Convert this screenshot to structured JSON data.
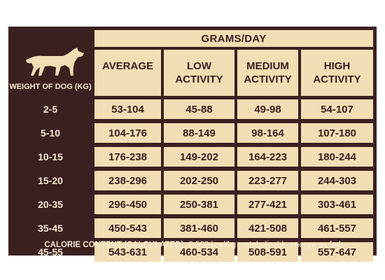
{
  "table": {
    "grams_header": "GRAMS/DAY",
    "weight_header": "WEIGHT OF DOG (KG)",
    "columns": [
      {
        "line1": "AVERAGE",
        "line2": ""
      },
      {
        "line1": "LOW",
        "line2": "ACTIVITY"
      },
      {
        "line1": "MEDIUM",
        "line2": "ACTIVITY"
      },
      {
        "line1": "HIGH",
        "line2": "ACTIVITY"
      }
    ],
    "rows": [
      {
        "weight": "2-5",
        "values": [
          "53-104",
          "45-88",
          "49-98",
          "54-107"
        ]
      },
      {
        "weight": "5-10",
        "values": [
          "104-176",
          "88-149",
          "98-164",
          "107-180"
        ]
      },
      {
        "weight": "10-15",
        "values": [
          "176-238",
          "149-202",
          "164-223",
          "180-244"
        ]
      },
      {
        "weight": "15-20",
        "values": [
          "238-296",
          "202-250",
          "223-277",
          "244-303"
        ]
      },
      {
        "weight": "20-35",
        "values": [
          "296-450",
          "250-381",
          "277-421",
          "303-461"
        ]
      },
      {
        "weight": "35-45",
        "values": [
          "450-543",
          "381-460",
          "421-508",
          "461-557"
        ]
      },
      {
        "weight": "45-55",
        "values": [
          "543-631",
          "460-534",
          "508-591",
          "557-647"
        ]
      }
    ]
  },
  "footer": {
    "label": "CALORIE CONTENT (CALCULATED): ",
    "value": "3,520 kcal/kg metabolizable energy, as fed"
  },
  "icons": {
    "dog": "dog-silhouette-icon"
  },
  "colors": {
    "dark": "#3b2020",
    "cream": "#f1deb4",
    "light_text": "#f7ead0"
  }
}
